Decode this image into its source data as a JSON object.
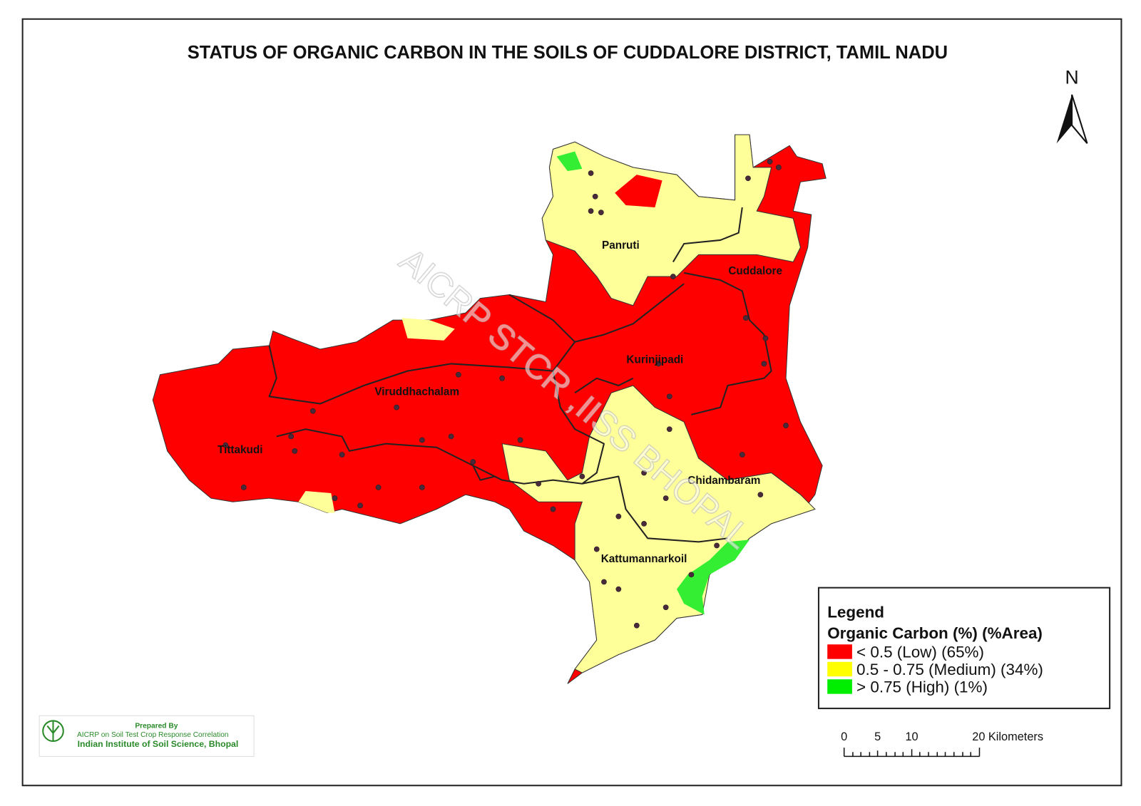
{
  "title": "STATUS OF ORGANIC CARBON  IN THE SOILS OF CUDDALORE DISTRICT, TAMIL NADU",
  "north": "N",
  "watermark": "AICRP STCR ,IISS BHOPAL",
  "blocks": [
    "Panruti",
    "Cuddalore",
    "Kurinjipadi",
    "Viruddhachalam",
    "Tittakudi",
    "Chidambaram",
    "Kattumannarkoil"
  ],
  "legend": {
    "title": "Legend",
    "subtitle": "Organic Carbon (%) (%Area)",
    "items": [
      "< 0.5 (Low)  (65%)",
      "0.5 - 0.75 (Medium) (34%)",
      "> 0.75 (High) (1%)"
    ]
  },
  "scale_bar": {
    "labels": [
      "0",
      "5",
      "10",
      "20 Kilometers"
    ]
  },
  "credit": {
    "line1": "Prepared By",
    "line2": "AICRP on Soil Test Crop Response Correlation",
    "line3": "Indian Institute of Soil Science, Bhopal"
  }
}
